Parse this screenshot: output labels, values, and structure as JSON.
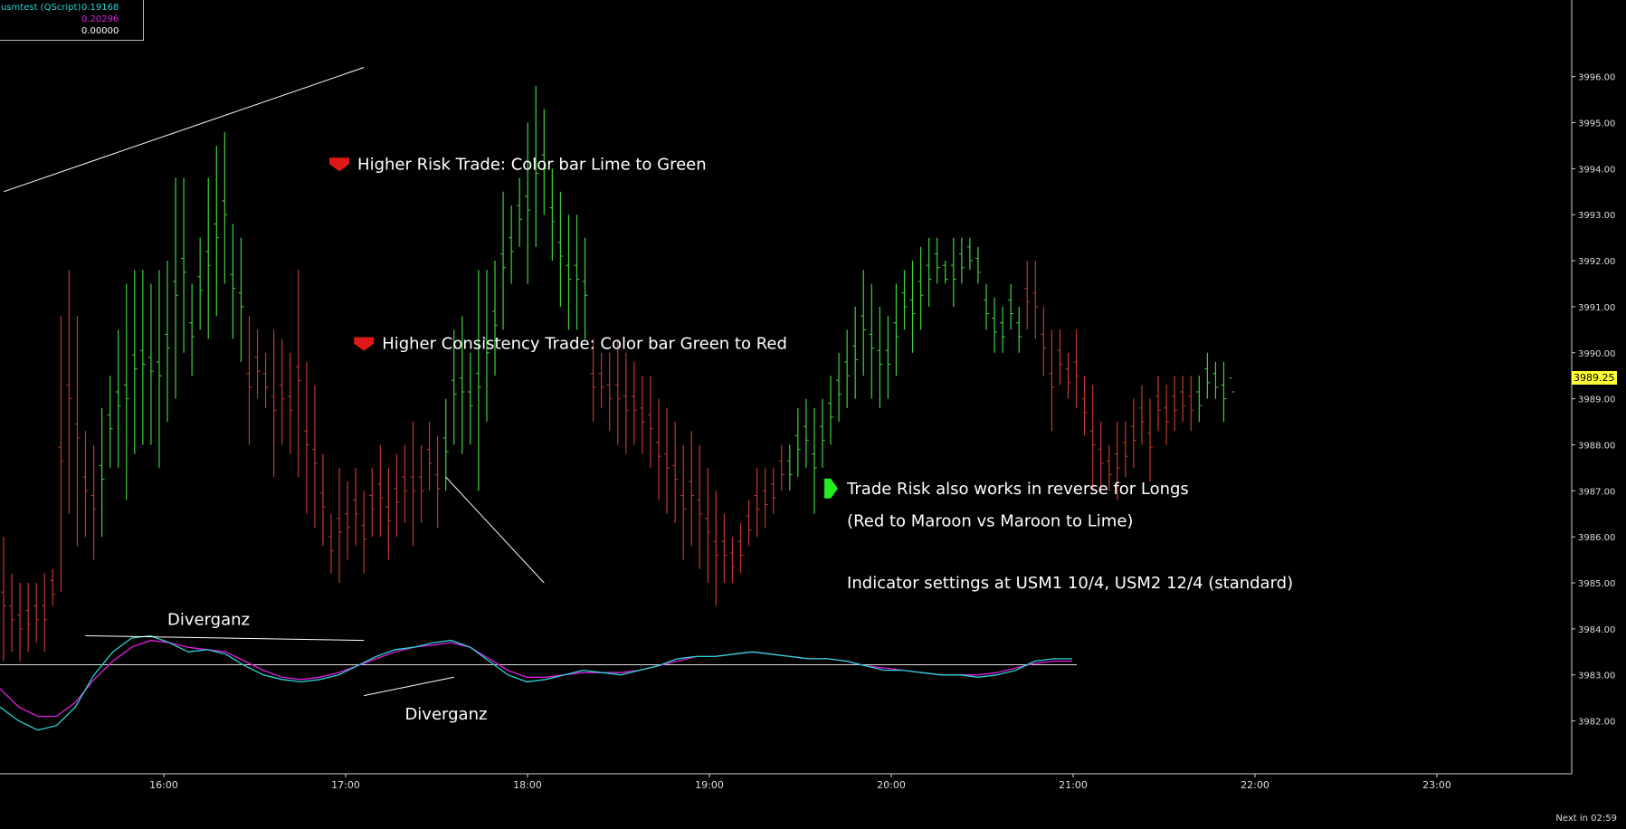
{
  "legend": {
    "name": "usmtest (QScript)",
    "values": [
      "0.19168",
      "0.20296",
      "0.00000"
    ],
    "value_colors": [
      "#2ad3d3",
      "#e020e0",
      "#ffffff"
    ]
  },
  "footer": {
    "next_label": "Next in 02:59"
  },
  "last_price": "3989.25",
  "colors": {
    "background": "#000000",
    "lime": "#3ed23e",
    "red": "#c0392b",
    "axis": "#cfcfcf",
    "osc_cyan": "#2ad3d3",
    "osc_magenta": "#e020e0"
  },
  "chart_data": {
    "type": "ohlc-bar",
    "y_axis": {
      "min": 3981.5,
      "max": 3996.8,
      "ticks": [
        "3982.00",
        "3983.00",
        "3984.00",
        "3985.00",
        "3986.00",
        "3987.00",
        "3988.00",
        "3989.00",
        "3990.00",
        "3991.00",
        "3992.00",
        "3993.00",
        "3994.00",
        "3995.00",
        "3996.00"
      ]
    },
    "x_axis": {
      "ticks": [
        "16:00",
        "17:00",
        "18:00",
        "19:00",
        "20:00",
        "21:00",
        "22:00",
        "23:00"
      ]
    },
    "bars": [
      [
        "red",
        3986.0,
        3983.3
      ],
      [
        "red",
        3985.2,
        3983.5
      ],
      [
        "red",
        3985.0,
        3983.3
      ],
      [
        "red",
        3985.0,
        3983.5
      ],
      [
        "red",
        3985.0,
        3983.7
      ],
      [
        "red",
        3985.2,
        3983.5
      ],
      [
        "red",
        3985.3,
        3984.5
      ],
      [
        "red",
        3990.8,
        3984.8
      ],
      [
        "red",
        3991.8,
        3986.5
      ],
      [
        "red",
        3990.8,
        3985.8
      ],
      [
        "red",
        3988.3,
        3986.0
      ],
      [
        "red",
        3988.0,
        3985.5
      ],
      [
        "lime",
        3988.8,
        3986.0
      ],
      [
        "lime",
        3989.5,
        3987.5
      ],
      [
        "lime",
        3990.5,
        3987.5
      ],
      [
        "lime",
        3991.5,
        3986.8
      ],
      [
        "lime",
        3991.8,
        3987.8
      ],
      [
        "lime",
        3991.8,
        3988.0
      ],
      [
        "lime",
        3991.5,
        3988.0
      ],
      [
        "lime",
        3991.8,
        3987.5
      ],
      [
        "lime",
        3992.0,
        3988.5
      ],
      [
        "lime",
        3993.8,
        3989.0
      ],
      [
        "lime",
        3993.8,
        3990.0
      ],
      [
        "lime",
        3991.5,
        3989.5
      ],
      [
        "lime",
        3992.5,
        3990.5
      ],
      [
        "lime",
        3993.8,
        3990.3
      ],
      [
        "lime",
        3994.5,
        3990.8
      ],
      [
        "lime",
        3994.8,
        3991.5
      ],
      [
        "lime",
        3992.8,
        3990.3
      ],
      [
        "lime",
        3992.5,
        3989.8
      ],
      [
        "red",
        3990.8,
        3988.0
      ],
      [
        "red",
        3990.5,
        3989.0
      ],
      [
        "red",
        3990.0,
        3988.8
      ],
      [
        "red",
        3990.5,
        3987.3
      ],
      [
        "red",
        3990.3,
        3988.0
      ],
      [
        "red",
        3990.0,
        3987.8
      ],
      [
        "red",
        3991.8,
        3987.3
      ],
      [
        "red",
        3989.8,
        3986.5
      ],
      [
        "red",
        3989.3,
        3986.2
      ],
      [
        "red",
        3987.8,
        3985.8
      ],
      [
        "red",
        3986.5,
        3985.2
      ],
      [
        "red",
        3987.5,
        3985.0
      ],
      [
        "red",
        3987.2,
        3985.5
      ],
      [
        "red",
        3987.5,
        3985.8
      ],
      [
        "red",
        3987.0,
        3985.2
      ],
      [
        "red",
        3987.5,
        3986.0
      ],
      [
        "red",
        3988.0,
        3986.0
      ],
      [
        "red",
        3987.5,
        3985.5
      ],
      [
        "red",
        3987.8,
        3986.0
      ],
      [
        "red",
        3988.0,
        3986.3
      ],
      [
        "red",
        3988.5,
        3985.8
      ],
      [
        "red",
        3988.0,
        3986.3
      ],
      [
        "red",
        3988.5,
        3987.0
      ],
      [
        "red",
        3988.2,
        3986.2
      ],
      [
        "lime",
        3989.0,
        3987.0
      ],
      [
        "lime",
        3990.5,
        3988.0
      ],
      [
        "lime",
        3990.8,
        3987.8
      ],
      [
        "lime",
        3990.0,
        3988.0
      ],
      [
        "lime",
        3991.8,
        3987.0
      ],
      [
        "lime",
        3991.8,
        3988.5
      ],
      [
        "lime",
        3992.0,
        3989.5
      ],
      [
        "lime",
        3993.5,
        3990.5
      ],
      [
        "lime",
        3993.2,
        3991.5
      ],
      [
        "lime",
        3993.8,
        3992.3
      ],
      [
        "lime",
        3995.0,
        3991.5
      ],
      [
        "lime",
        3995.8,
        3992.3
      ],
      [
        "lime",
        3995.3,
        3993.0
      ],
      [
        "lime",
        3994.0,
        3992.0
      ],
      [
        "lime",
        3993.5,
        3991.0
      ],
      [
        "lime",
        3993.0,
        3990.5
      ],
      [
        "lime",
        3993.0,
        3990.5
      ],
      [
        "lime",
        3992.5,
        3990.3
      ],
      [
        "red",
        3990.3,
        3988.5
      ],
      [
        "red",
        3990.0,
        3988.8
      ],
      [
        "red",
        3990.0,
        3988.3
      ],
      [
        "red",
        3990.3,
        3988.0
      ],
      [
        "red",
        3990.0,
        3987.8
      ],
      [
        "red",
        3989.8,
        3988.0
      ],
      [
        "red",
        3989.5,
        3987.8
      ],
      [
        "red",
        3989.5,
        3987.5
      ],
      [
        "red",
        3989.0,
        3986.8
      ],
      [
        "red",
        3988.8,
        3986.5
      ],
      [
        "red",
        3988.5,
        3986.3
      ],
      [
        "red",
        3988.0,
        3985.5
      ],
      [
        "red",
        3988.3,
        3985.8
      ],
      [
        "red",
        3988.0,
        3985.3
      ],
      [
        "red",
        3987.5,
        3985.0
      ],
      [
        "red",
        3987.0,
        3984.5
      ],
      [
        "red",
        3986.5,
        3985.0
      ],
      [
        "red",
        3986.0,
        3985.0
      ],
      [
        "red",
        3986.3,
        3985.2
      ],
      [
        "red",
        3986.8,
        3985.8
      ],
      [
        "red",
        3987.5,
        3986.0
      ],
      [
        "red",
        3987.5,
        3986.2
      ],
      [
        "red",
        3987.5,
        3986.5
      ],
      [
        "red",
        3988.0,
        3987.0
      ],
      [
        "lime",
        3988.0,
        3987.0
      ],
      [
        "lime",
        3988.8,
        3987.3
      ],
      [
        "lime",
        3989.0,
        3987.5
      ],
      [
        "lime",
        3988.8,
        3986.5
      ],
      [
        "lime",
        3989.0,
        3987.5
      ],
      [
        "lime",
        3989.5,
        3988.0
      ],
      [
        "lime",
        3990.0,
        3988.5
      ],
      [
        "lime",
        3990.5,
        3988.8
      ],
      [
        "lime",
        3991.0,
        3989.0
      ],
      [
        "lime",
        3991.8,
        3989.5
      ],
      [
        "lime",
        3991.5,
        3989.0
      ],
      [
        "lime",
        3991.0,
        3988.8
      ],
      [
        "lime",
        3990.8,
        3989.0
      ],
      [
        "lime",
        3991.5,
        3989.5
      ],
      [
        "lime",
        3991.8,
        3990.5
      ],
      [
        "lime",
        3992.0,
        3990.0
      ],
      [
        "lime",
        3992.3,
        3990.5
      ],
      [
        "lime",
        3992.5,
        3991.0
      ],
      [
        "lime",
        3992.5,
        3991.5
      ],
      [
        "lime",
        3992.0,
        3991.5
      ],
      [
        "lime",
        3992.5,
        3991.0
      ],
      [
        "lime",
        3992.5,
        3991.5
      ],
      [
        "lime",
        3992.5,
        3991.8
      ],
      [
        "lime",
        3992.3,
        3991.5
      ],
      [
        "lime",
        3991.5,
        3990.5
      ],
      [
        "lime",
        3991.2,
        3990.0
      ],
      [
        "lime",
        3991.0,
        3990.0
      ],
      [
        "lime",
        3991.5,
        3990.5
      ],
      [
        "lime",
        3991.0,
        3990.0
      ],
      [
        "red",
        3992.0,
        3990.5
      ],
      [
        "red",
        3992.0,
        3990.3
      ],
      [
        "red",
        3991.0,
        3989.5
      ],
      [
        "red",
        3990.5,
        3988.3
      ],
      [
        "red",
        3990.5,
        3989.3
      ],
      [
        "red",
        3990.0,
        3989.0
      ],
      [
        "red",
        3990.5,
        3988.8
      ],
      [
        "red",
        3989.5,
        3988.2
      ],
      [
        "red",
        3989.3,
        3987.0
      ],
      [
        "red",
        3988.5,
        3987.0
      ],
      [
        "red",
        3988.0,
        3987.0
      ],
      [
        "red",
        3988.5,
        3986.8
      ],
      [
        "red",
        3988.5,
        3987.3
      ],
      [
        "red",
        3989.0,
        3987.5
      ],
      [
        "red",
        3989.3,
        3988.0
      ],
      [
        "red",
        3989.0,
        3987.2
      ],
      [
        "red",
        3989.5,
        3988.3
      ],
      [
        "red",
        3989.3,
        3988.0
      ],
      [
        "red",
        3989.5,
        3988.3
      ],
      [
        "red",
        3989.5,
        3988.5
      ],
      [
        "red",
        3989.5,
        3988.3
      ],
      [
        "lime",
        3989.5,
        3988.5
      ],
      [
        "lime",
        3990.0,
        3989.0
      ],
      [
        "lime",
        3989.8,
        3989.0
      ],
      [
        "lime",
        3989.8,
        3988.5
      ],
      [
        "lime",
        3989.3,
        3989.3
      ]
    ],
    "oscillator": {
      "cyan": [
        3982.3,
        3982.0,
        3981.8,
        3981.9,
        3982.3,
        3983.0,
        3983.5,
        3983.8,
        3983.85,
        3983.7,
        3983.5,
        3983.55,
        3983.45,
        3983.2,
        3983.0,
        3982.9,
        3982.85,
        3982.9,
        3983.0,
        3983.2,
        3983.4,
        3983.55,
        3983.6,
        3983.7,
        3983.75,
        3983.6,
        3983.3,
        3983.0,
        3982.85,
        3982.9,
        3983.0,
        3983.1,
        3983.05,
        3983.0,
        3983.1,
        3983.2,
        3983.35,
        3983.4,
        3983.4,
        3983.45,
        3983.5,
        3983.45,
        3983.4,
        3983.35,
        3983.35,
        3983.3,
        3983.2,
        3983.1,
        3983.1,
        3983.05,
        3983.0,
        3983.0,
        3982.95,
        3983.0,
        3983.1,
        3983.3,
        3983.35,
        3983.35
      ],
      "magenta": [
        3982.7,
        3982.3,
        3982.1,
        3982.1,
        3982.4,
        3982.9,
        3983.3,
        3983.6,
        3983.75,
        3983.7,
        3983.6,
        3983.55,
        3983.5,
        3983.3,
        3983.1,
        3982.95,
        3982.9,
        3982.95,
        3983.05,
        3983.2,
        3983.35,
        3983.5,
        3983.6,
        3983.65,
        3983.7,
        3983.6,
        3983.35,
        3983.1,
        3982.95,
        3982.95,
        3983.0,
        3983.05,
        3983.05,
        3983.05,
        3983.1,
        3983.2,
        3983.3,
        3983.4,
        3983.4,
        3983.45,
        3983.5,
        3983.45,
        3983.4,
        3983.35,
        3983.35,
        3983.3,
        3983.2,
        3983.15,
        3983.1,
        3983.05,
        3983.0,
        3983.0,
        3983.0,
        3983.05,
        3983.15,
        3983.25,
        3983.3,
        3983.3
      ],
      "zero_line": 3983.22
    },
    "trendlines": [
      {
        "from": [
          0,
          3993.5
        ],
        "to": [
          44,
          3996.2
        ]
      },
      {
        "from": [
          54,
          3987.3
        ],
        "to": [
          66,
          3985.0
        ]
      },
      {
        "from": [
          10,
          3983.85
        ],
        "to": [
          44,
          3983.75
        ]
      },
      {
        "from": [
          44,
          3982.55
        ],
        "to": [
          55,
          3982.95
        ]
      }
    ],
    "annotations": [
      {
        "id": "risk",
        "text": "Higher Risk Trade:  Color bar Lime to Green",
        "arrow": "down",
        "arrow_color": "#e01818",
        "at": [
          41,
          3994.1
        ]
      },
      {
        "id": "consistency",
        "text": "Higher Consistency Trade: Color bar Green to Red",
        "arrow": "down",
        "arrow_color": "#e01818",
        "at": [
          44,
          3990.2
        ]
      },
      {
        "id": "reverse",
        "text": "Trade Risk also works in reverse for Longs",
        "arrow": "right",
        "arrow_color": "#22ee22",
        "at": [
          101,
          3987.05
        ]
      },
      {
        "id": "reverse2",
        "text": "(Red to Maroon vs Maroon to Lime)",
        "at": [
          101,
          3986.35
        ]
      },
      {
        "id": "settings",
        "text": "Indicator settings at USM1 10/4, USM2 12/4 (standard)",
        "at": [
          101,
          3985.0
        ]
      },
      {
        "id": "div1",
        "text": "Diverganz",
        "at": [
          20,
          3984.2
        ]
      },
      {
        "id": "div2",
        "text": "Diverganz",
        "at": [
          49,
          3982.15
        ]
      }
    ]
  }
}
